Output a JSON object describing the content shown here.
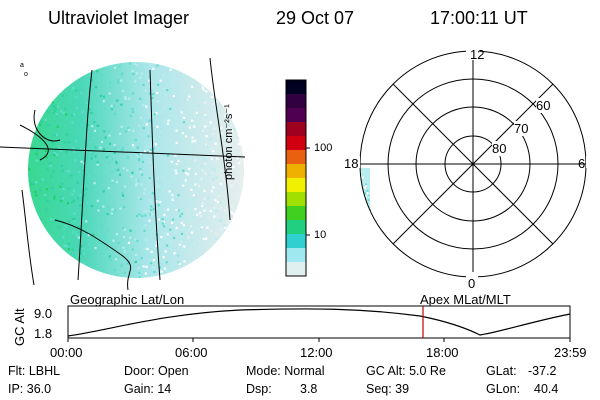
{
  "header": {
    "instrument": "Ultraviolet Imager",
    "date": "29 Oct 07",
    "time": "17:00:11 UT"
  },
  "colorbar": {
    "label": "photon cm⁻²s⁻¹",
    "ticks": [
      "100",
      "10"
    ],
    "colors": [
      "#000020",
      "#300040",
      "#500050",
      "#a00020",
      "#d00010",
      "#e86010",
      "#f0b000",
      "#f0f000",
      "#a0e000",
      "#40d020",
      "#20d080",
      "#30d0d0",
      "#a0e8f0",
      "#e0f0f0"
    ]
  },
  "polar_plot": {
    "labels": {
      "top": "12",
      "left": "18",
      "right": "6",
      "bottom": "0"
    },
    "ring_labels": [
      "60",
      "70",
      "80"
    ]
  },
  "labels": {
    "geographic": "Geographic Lat/Lon",
    "apex": "Apex MLat/MLT"
  },
  "altitude_plot": {
    "ylabel": "GC Alt",
    "y_ticks": [
      "9.0",
      "1.8"
    ],
    "x_ticks": [
      "00:00",
      "06:00",
      "12:00",
      "18:00",
      "23:59"
    ],
    "marker_time": "17:00:11"
  },
  "status": {
    "flt": "Flt: LBHL",
    "ip": "IP: 36.0",
    "door": "Door: Open",
    "gain": "Gain: 14",
    "mode": "Mode: Normal",
    "dsp_label": "Dsp:",
    "dsp_value": "3.8",
    "gc_alt": "GC Alt: 5.0 Re",
    "seq": "Seq: 39",
    "glat_label": "GLat:",
    "glat_value": "-37.2",
    "glon_label": "GLon:",
    "glon_value": "40.4"
  }
}
